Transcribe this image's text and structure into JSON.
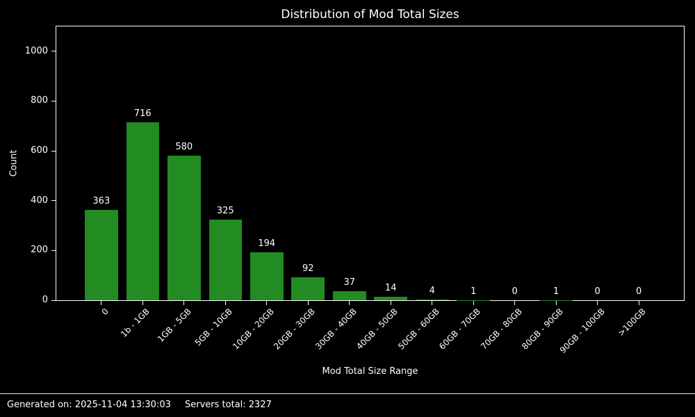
{
  "chart_data": {
    "type": "bar",
    "title": "Distribution of Mod Total Sizes",
    "xlabel": "Mod Total Size Range",
    "ylabel": "Count",
    "categories": [
      "0",
      "1b - 1GB",
      "1GB - 5GB",
      "5GB - 10GB",
      "10GB - 20GB",
      "20GB - 30GB",
      "30GB - 40GB",
      "40GB - 50GB",
      "50GB - 60GB",
      "60GB - 70GB",
      "70GB - 80GB",
      "80GB - 90GB",
      "90GB - 100GB",
      ">100GB"
    ],
    "values": [
      363,
      716,
      580,
      325,
      194,
      92,
      37,
      14,
      4,
      1,
      0,
      1,
      0,
      0
    ],
    "yticks": [
      0,
      200,
      400,
      600,
      800,
      1000
    ],
    "ylim": [
      0,
      1100
    ],
    "bar_color": "#228B22",
    "background_color": "#000000",
    "text_color": "#ffffff",
    "grid": false,
    "legend": null,
    "bar_value_labels": true,
    "x_tick_rotation_deg": 45
  },
  "footer": {
    "generated_on": "Generated on: 2025-11-04 13:30:03",
    "servers_total": "Servers total: 2327"
  }
}
